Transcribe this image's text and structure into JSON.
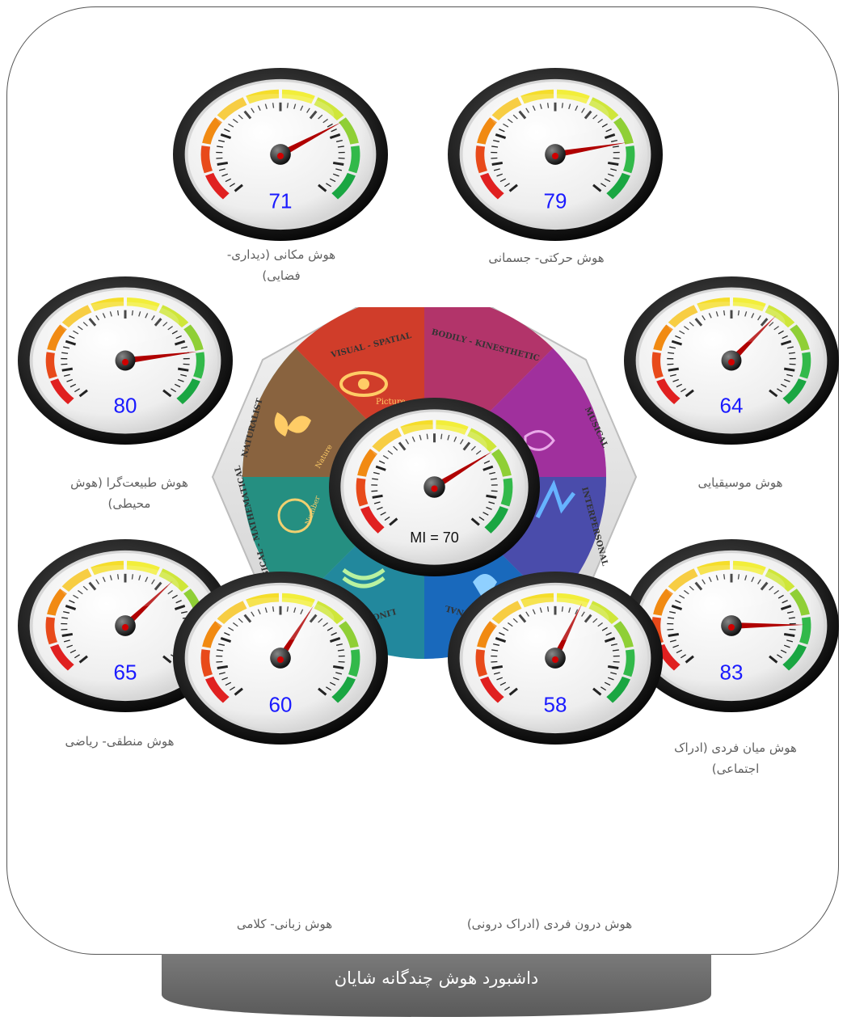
{
  "dashboard": {
    "title": "داشبورد هوش چندگانه شایان",
    "central": {
      "label": "MI = 70",
      "value": 70
    },
    "wheel_segments": [
      "VISUAL - SPATIAL",
      "BODILY - KINESTHETIC",
      "MUSICAL",
      "INTERPERSONAL",
      "INTRAPERSONAL",
      "LINGUISTIC",
      "LOGICAL - MATHEMATICAL",
      "NATURALIST"
    ],
    "wheel_icon_texts": [
      "Picture",
      "Nature",
      "Number"
    ],
    "gauges": [
      {
        "id": "visual",
        "value": 71,
        "value_text": "71",
        "label_lines": [
          "هوش مکانی (دیداری-",
          "فضایی)"
        ]
      },
      {
        "id": "bodily",
        "value": 79,
        "value_text": "79",
        "label_lines": [
          "هوش حرکتی- جسمانی"
        ]
      },
      {
        "id": "naturalist",
        "value": 80,
        "value_text": "80",
        "label_lines": [
          "هوش طبیعت‌گرا (هوش",
          "محیطی)"
        ]
      },
      {
        "id": "musical",
        "value": 64,
        "value_text": "64",
        "label_lines": [
          "هوش موسیقیایی"
        ]
      },
      {
        "id": "logical",
        "value": 65,
        "value_text": "65",
        "label_lines": [
          "هوش منطقی- ریاضی"
        ]
      },
      {
        "id": "interpersonal",
        "value": 83,
        "value_text": "83",
        "label_lines": [
          "هوش میان فردی (ادراک",
          "اجتماعی)"
        ]
      },
      {
        "id": "linguistic",
        "value": 60,
        "value_text": "60",
        "label_lines": [
          "هوش زبانی- کلامی"
        ]
      },
      {
        "id": "intrapersonal",
        "value": 58,
        "value_text": "58",
        "label_lines": [
          "هوش درون فردی (ادراک درونی)"
        ]
      }
    ]
  }
}
